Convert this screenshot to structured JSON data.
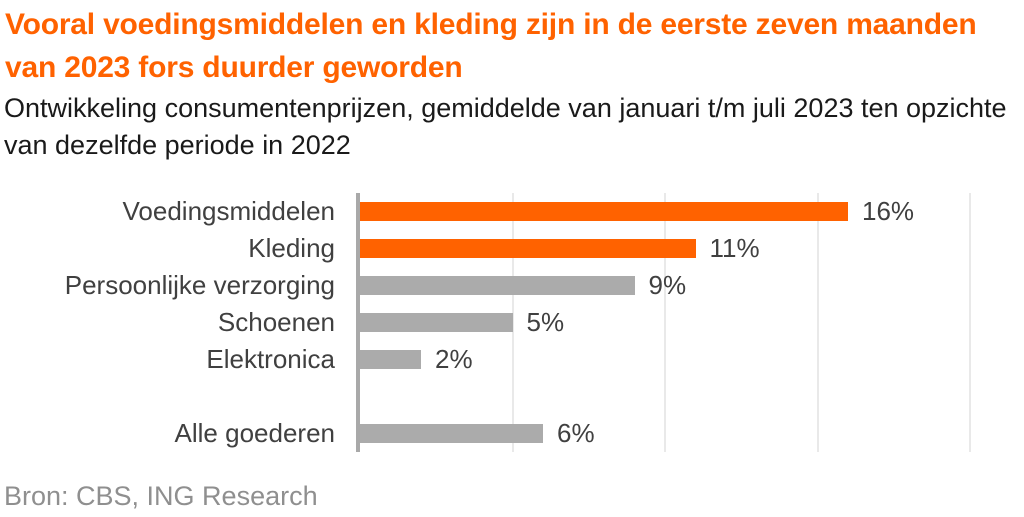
{
  "chart_data": {
    "type": "bar",
    "orientation": "horizontal",
    "title": "Vooral voedingsmiddelen en kleding zijn in de eerste zeven maanden van 2023 fors duurder geworden",
    "subtitle": "Ontwikkeling consumentenprijzen, gemiddelde van januari t/m juli 2023 ten opzichte van dezelfde periode in 2022",
    "categories": [
      "Voedingsmiddelen",
      "Kleding",
      "Persoonlijke verzorging",
      "Schoenen",
      "Elektronica",
      "Alle goederen"
    ],
    "values": [
      16,
      11,
      9,
      5,
      2,
      6
    ],
    "data_labels": [
      "16%",
      "11%",
      "9%",
      "5%",
      "2%",
      "6%"
    ],
    "bar_colors": [
      "#ff6200",
      "#ff6200",
      "#ababab",
      "#ababab",
      "#ababab",
      "#ababab"
    ],
    "xlim": [
      0,
      20
    ],
    "gridline_values": [
      5,
      10,
      15,
      20
    ],
    "grid": true,
    "legend": false,
    "spacer_before_index": 5,
    "source": "Bron: CBS, ING Research",
    "colors": {
      "title": "#ff6200",
      "subtitle": "#1a1a1a",
      "labels": "#404040",
      "accent_bar": "#ff6200",
      "neutral_bar": "#ababab",
      "axis": "#a9a9a9",
      "gridline": "#e9e9e9",
      "source": "#8f8f8f"
    }
  }
}
